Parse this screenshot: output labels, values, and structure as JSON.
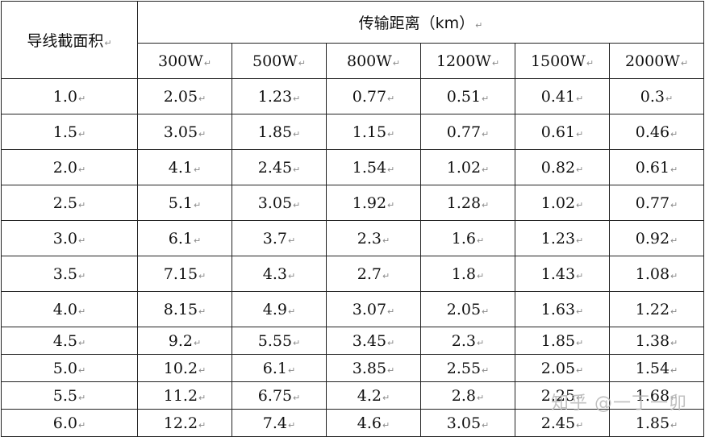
{
  "table": {
    "row_header": "导线截面积",
    "span_header": "传输距离（km）",
    "powers": [
      "300W",
      "500W",
      "800W",
      "1200W",
      "1500W",
      "2000W"
    ],
    "rows": [
      {
        "area": "1.0",
        "values": [
          "2.05",
          "1.23",
          "0.77",
          "0.51",
          "0.41",
          "0.3"
        ]
      },
      {
        "area": "1.5",
        "values": [
          "3.05",
          "1.85",
          "1.15",
          "0.77",
          "0.61",
          "0.46"
        ]
      },
      {
        "area": "2.0",
        "values": [
          "4.1",
          "2.45",
          "1.54",
          "1.02",
          "0.82",
          "0.61"
        ]
      },
      {
        "area": "2.5",
        "values": [
          "5.1",
          "3.05",
          "1.92",
          "1.28",
          "1.02",
          "0.77"
        ]
      },
      {
        "area": "3.0",
        "values": [
          "6.1",
          "3.7",
          "2.3",
          "1.6",
          "1.23",
          "0.92"
        ]
      },
      {
        "area": "3.5",
        "values": [
          "7.15",
          "4.3",
          "2.7",
          "1.8",
          "1.43",
          "1.08"
        ]
      },
      {
        "area": "4.0",
        "values": [
          "8.15",
          "4.9",
          "3.07",
          "2.05",
          "1.63",
          "1.22"
        ]
      },
      {
        "area": "4.5",
        "values": [
          "9.2",
          "5.55",
          "3.45",
          "2.3",
          "1.85",
          "1.38"
        ]
      },
      {
        "area": "5.0",
        "values": [
          "10.2",
          "6.1",
          "3.85",
          "2.55",
          "2.05",
          "1.54"
        ]
      },
      {
        "area": "5.5",
        "values": [
          "11.2",
          "6.75",
          "4.2",
          "2.8",
          "2.25",
          "1.68"
        ]
      },
      {
        "area": "6.0",
        "values": [
          "12.2",
          "7.4",
          "4.6",
          "3.05",
          "2.45",
          "1.85"
        ]
      }
    ]
  },
  "watermark": "知乎 @一丁一卯",
  "paragraph_mark": "↵"
}
